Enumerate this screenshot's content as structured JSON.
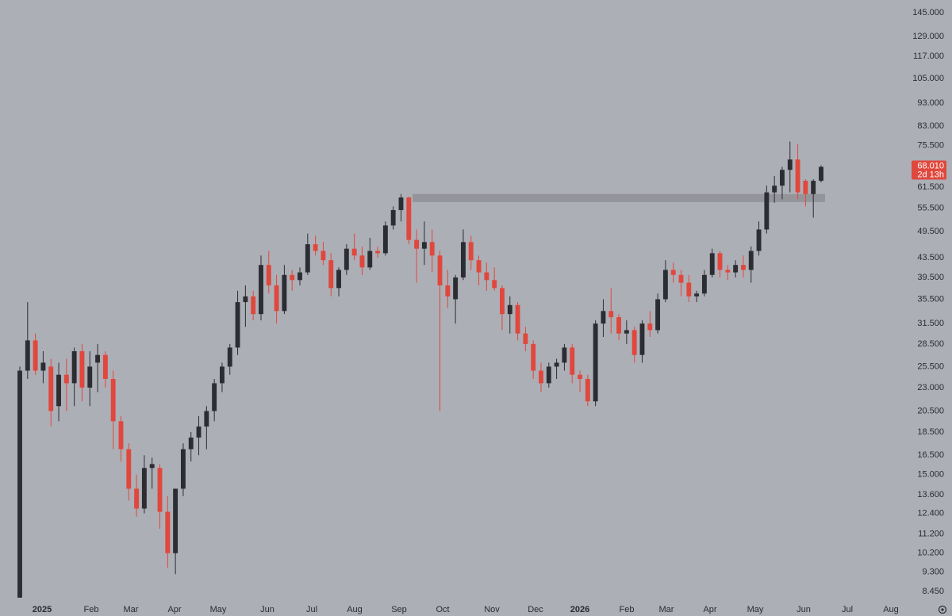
{
  "chart_data": {
    "type": "candlestick",
    "log_scale": true,
    "up_color": "#2b2d33",
    "down_color": "#e0473d",
    "zone_color": "#8f9197",
    "ylim": [
      8.1,
      154.3
    ],
    "yticks": [
      {
        "value": 145,
        "label": "145.000"
      },
      {
        "value": 129,
        "label": "129.000"
      },
      {
        "value": 117,
        "label": "117.000"
      },
      {
        "value": 105,
        "label": "105.000"
      },
      {
        "value": 93,
        "label": "93.000"
      },
      {
        "value": 83,
        "label": "83.000"
      },
      {
        "value": 75.5,
        "label": "75.500"
      },
      {
        "value": 61.5,
        "label": "61.500"
      },
      {
        "value": 55.5,
        "label": "55.500"
      },
      {
        "value": 49.5,
        "label": "49.500"
      },
      {
        "value": 43.5,
        "label": "43.500"
      },
      {
        "value": 39.5,
        "label": "39.500"
      },
      {
        "value": 35.5,
        "label": "35.500"
      },
      {
        "value": 31.5,
        "label": "31.500"
      },
      {
        "value": 28.5,
        "label": "28.500"
      },
      {
        "value": 25.5,
        "label": "25.500"
      },
      {
        "value": 23,
        "label": "23.000"
      },
      {
        "value": 20.5,
        "label": "20.500"
      },
      {
        "value": 18.5,
        "label": "18.500"
      },
      {
        "value": 16.5,
        "label": "16.500"
      },
      {
        "value": 15,
        "label": "15.000"
      },
      {
        "value": 13.6,
        "label": "13.600"
      },
      {
        "value": 12.4,
        "label": "12.400"
      },
      {
        "value": 11.2,
        "label": "11.200"
      },
      {
        "value": 10.2,
        "label": "10.200"
      },
      {
        "value": 9.3,
        "label": "9.300"
      },
      {
        "value": 8.45,
        "label": "8.450"
      }
    ],
    "x_labels": [
      "2025",
      "Feb",
      "Mar",
      "Apr",
      "May",
      "Jun",
      "Jul",
      "Aug",
      "Sep",
      "Oct",
      "Nov",
      "Dec",
      "2026",
      "Feb",
      "Mar",
      "Apr",
      "May",
      "Jun",
      "Jul",
      "Aug"
    ],
    "last_price": {
      "value": 68.01,
      "label": "68.010"
    },
    "countdown": "2d 13h",
    "support_zone": [
      57.2,
      59.5
    ],
    "candles": [
      [
        8.2,
        25.5,
        8.2,
        25
      ],
      [
        25,
        35,
        24,
        29
      ],
      [
        29,
        30,
        24.5,
        25
      ],
      [
        25,
        27.5,
        23.5,
        26
      ],
      [
        25.5,
        26.5,
        19,
        20.5
      ],
      [
        21,
        26,
        19.5,
        24.5
      ],
      [
        24.5,
        26.5,
        20.5,
        23.5
      ],
      [
        23.5,
        28,
        21,
        27.5
      ],
      [
        27.5,
        28.5,
        21.5,
        23
      ],
      [
        23,
        27.5,
        21,
        25.5
      ],
      [
        26,
        28.5,
        22.5,
        27
      ],
      [
        27,
        27.5,
        23,
        24
      ],
      [
        24,
        25,
        17,
        19.5
      ],
      [
        19.5,
        20,
        16,
        17
      ],
      [
        17,
        17.5,
        13.2,
        14
      ],
      [
        14,
        15,
        12.2,
        12.7
      ],
      [
        12.7,
        16.5,
        12.4,
        15.5
      ],
      [
        15.5,
        16.3,
        14,
        15.8
      ],
      [
        15.5,
        15.8,
        11.5,
        12.5
      ],
      [
        12.5,
        13.5,
        9.5,
        10.2
      ],
      [
        10.2,
        14,
        9.2,
        14
      ],
      [
        14,
        17.5,
        13.5,
        17
      ],
      [
        17,
        18.5,
        16,
        18
      ],
      [
        18,
        20,
        16.5,
        19
      ],
      [
        19,
        21,
        17,
        20.5
      ],
      [
        20.5,
        24,
        19.5,
        23.5
      ],
      [
        23.5,
        26,
        22.5,
        25.5
      ],
      [
        25.5,
        28.5,
        24.5,
        28
      ],
      [
        28,
        37,
        27,
        35
      ],
      [
        35,
        38,
        31,
        36
      ],
      [
        36,
        37,
        32,
        33
      ],
      [
        33,
        44,
        32,
        42
      ],
      [
        42,
        45,
        36.5,
        38
      ],
      [
        38,
        40,
        31.5,
        33.5
      ],
      [
        33.5,
        42,
        33,
        40
      ],
      [
        40,
        41,
        37,
        39
      ],
      [
        39,
        41.5,
        38,
        40.5
      ],
      [
        40.5,
        49,
        40,
        46.5
      ],
      [
        46.5,
        48.5,
        44,
        45
      ],
      [
        45,
        47,
        42,
        43
      ],
      [
        43,
        44.5,
        36,
        37.5
      ],
      [
        37.5,
        41.5,
        36,
        41
      ],
      [
        41,
        46.5,
        40,
        45.5
      ],
      [
        45.5,
        49,
        43,
        44
      ],
      [
        44,
        46,
        40,
        41.5
      ],
      [
        41.5,
        48,
        41,
        45
      ],
      [
        45,
        46,
        43.5,
        44.5
      ],
      [
        44.5,
        52,
        44,
        51
      ],
      [
        51,
        56,
        50,
        55
      ],
      [
        55,
        59.5,
        52,
        58.5
      ],
      [
        58.5,
        58.8,
        46.5,
        47.5
      ],
      [
        47.5,
        50,
        38.5,
        45.5
      ],
      [
        45.5,
        52,
        42,
        47
      ],
      [
        47,
        50,
        40.5,
        44
      ],
      [
        44,
        45,
        20.5,
        38
      ],
      [
        38,
        41,
        34,
        36
      ],
      [
        35.5,
        40,
        31.5,
        39.5
      ],
      [
        39.5,
        50,
        39,
        47
      ],
      [
        47,
        48.5,
        41,
        43
      ],
      [
        43,
        44,
        38,
        40.5
      ],
      [
        40.5,
        42.5,
        37,
        39
      ],
      [
        39,
        41.5,
        37,
        37.5
      ],
      [
        37.5,
        38,
        30.5,
        33
      ],
      [
        33,
        36,
        30,
        34.5
      ],
      [
        34.5,
        35,
        29,
        30
      ],
      [
        30,
        31,
        27.5,
        28.5
      ],
      [
        28.5,
        29,
        24,
        25
      ],
      [
        25,
        26,
        22.5,
        23.5
      ],
      [
        23.5,
        26,
        23,
        25.5
      ],
      [
        25.5,
        26.5,
        24,
        26
      ],
      [
        26,
        28.5,
        25,
        28
      ],
      [
        28,
        28.5,
        23.5,
        24.5
      ],
      [
        24.5,
        25,
        22.5,
        24
      ],
      [
        24,
        24.5,
        21,
        21.5
      ],
      [
        21.5,
        32,
        21,
        31.5
      ],
      [
        31.5,
        35.5,
        29.5,
        33.5
      ],
      [
        33.5,
        37.5,
        30,
        32.5
      ],
      [
        32.5,
        33,
        29,
        30
      ],
      [
        30,
        32,
        28.5,
        30.5
      ],
      [
        30.5,
        31,
        26,
        27
      ],
      [
        27,
        32,
        26,
        31.5
      ],
      [
        31.5,
        33.5,
        29.5,
        30.5
      ],
      [
        30.5,
        36.5,
        30,
        35.5
      ],
      [
        35.5,
        43,
        35,
        41
      ],
      [
        41,
        42.5,
        38.5,
        40
      ],
      [
        40,
        41,
        36,
        38.5
      ],
      [
        38.5,
        40,
        35,
        36
      ],
      [
        36,
        37,
        35,
        36.5
      ],
      [
        36.5,
        41,
        36,
        40
      ],
      [
        40,
        45.5,
        39.5,
        44.5
      ],
      [
        44.5,
        45,
        39.5,
        41
      ],
      [
        41,
        42,
        39,
        40.5
      ],
      [
        40.5,
        43,
        39.5,
        42
      ],
      [
        42,
        44,
        39.5,
        41
      ],
      [
        41,
        46,
        38.5,
        45
      ],
      [
        45,
        52,
        44,
        50
      ],
      [
        50,
        62,
        49,
        60
      ],
      [
        60,
        65,
        57,
        62
      ],
      [
        62,
        68,
        58,
        67
      ],
      [
        67,
        77,
        60,
        70.5
      ],
      [
        70.5,
        76,
        58,
        60
      ],
      [
        63.5,
        64,
        56,
        59.5
      ],
      [
        59.5,
        64,
        53,
        63.5
      ],
      [
        63.5,
        68.5,
        63,
        68.01
      ]
    ]
  }
}
